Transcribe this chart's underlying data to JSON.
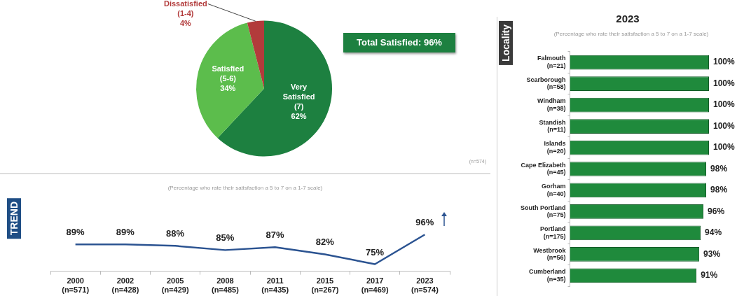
{
  "chart_data": [
    {
      "type": "pie",
      "categories": [
        "Very\nSatisfied\n(7)",
        "Satisfied\n(5-6)",
        "Dissatisfied\n(1-4)"
      ],
      "values": [
        62,
        34,
        4
      ],
      "colors": [
        "#1d8040",
        "#5cbd4c",
        "#b23b3b"
      ],
      "value_labels": [
        "62%",
        "34%",
        "4%"
      ],
      "annotations": [
        "Total Satisfied: 96%",
        "(n=574)"
      ]
    },
    {
      "type": "line",
      "ylabel": "TREND",
      "subtitle": "(Percentage who rate their satisfaction a 5 to 7 on a 1-7 scale)",
      "categories": [
        "2000\n(n=571)",
        "2002\n(n=428)",
        "2005\n(n=429)",
        "2008\n(n=485)",
        "2011\n(n=435)",
        "2015\n(n=267)",
        "2017\n(n=469)",
        "2023\n(n=574)"
      ],
      "series": [
        {
          "color": "#2b5391",
          "values": [
            89,
            89,
            88,
            85,
            87,
            82,
            75,
            96
          ],
          "value_labels": [
            "89%",
            "89%",
            "88%",
            "85%",
            "87%",
            "82%",
            "75%",
            "96%"
          ]
        }
      ],
      "marker": "none",
      "tick_labels": "x"
    },
    {
      "type": "bar",
      "orientation": "horizontal",
      "title": "2023",
      "subtitle": "(Percentage who rate their satisfaction a 5 to 7 on a 1-7 scale)",
      "ylabel": "Locality",
      "categories": [
        "Falmouth\n(n=21)",
        "Scarborough\n(n=58)",
        "Windham\n(n=38)",
        "Standish\n(n=11)",
        "Islands\n(n=20)",
        "Cape Elizabeth\n(n=45)",
        "Gorham\n(n=40)",
        "South Portland\n(n=75)",
        "Portland\n(n=175)",
        "Westbrook\n(n=56)",
        "Cumberland\n(n=35)"
      ],
      "values": [
        100,
        100,
        100,
        100,
        100,
        98,
        98,
        96,
        94,
        93,
        91
      ],
      "color": "#1f8a3c",
      "value_labels": [
        "100%",
        "100%",
        "100%",
        "100%",
        "100%",
        "98%",
        "98%",
        "96%",
        "94%",
        "93%",
        "91%"
      ],
      "tick_labels": "y"
    }
  ]
}
